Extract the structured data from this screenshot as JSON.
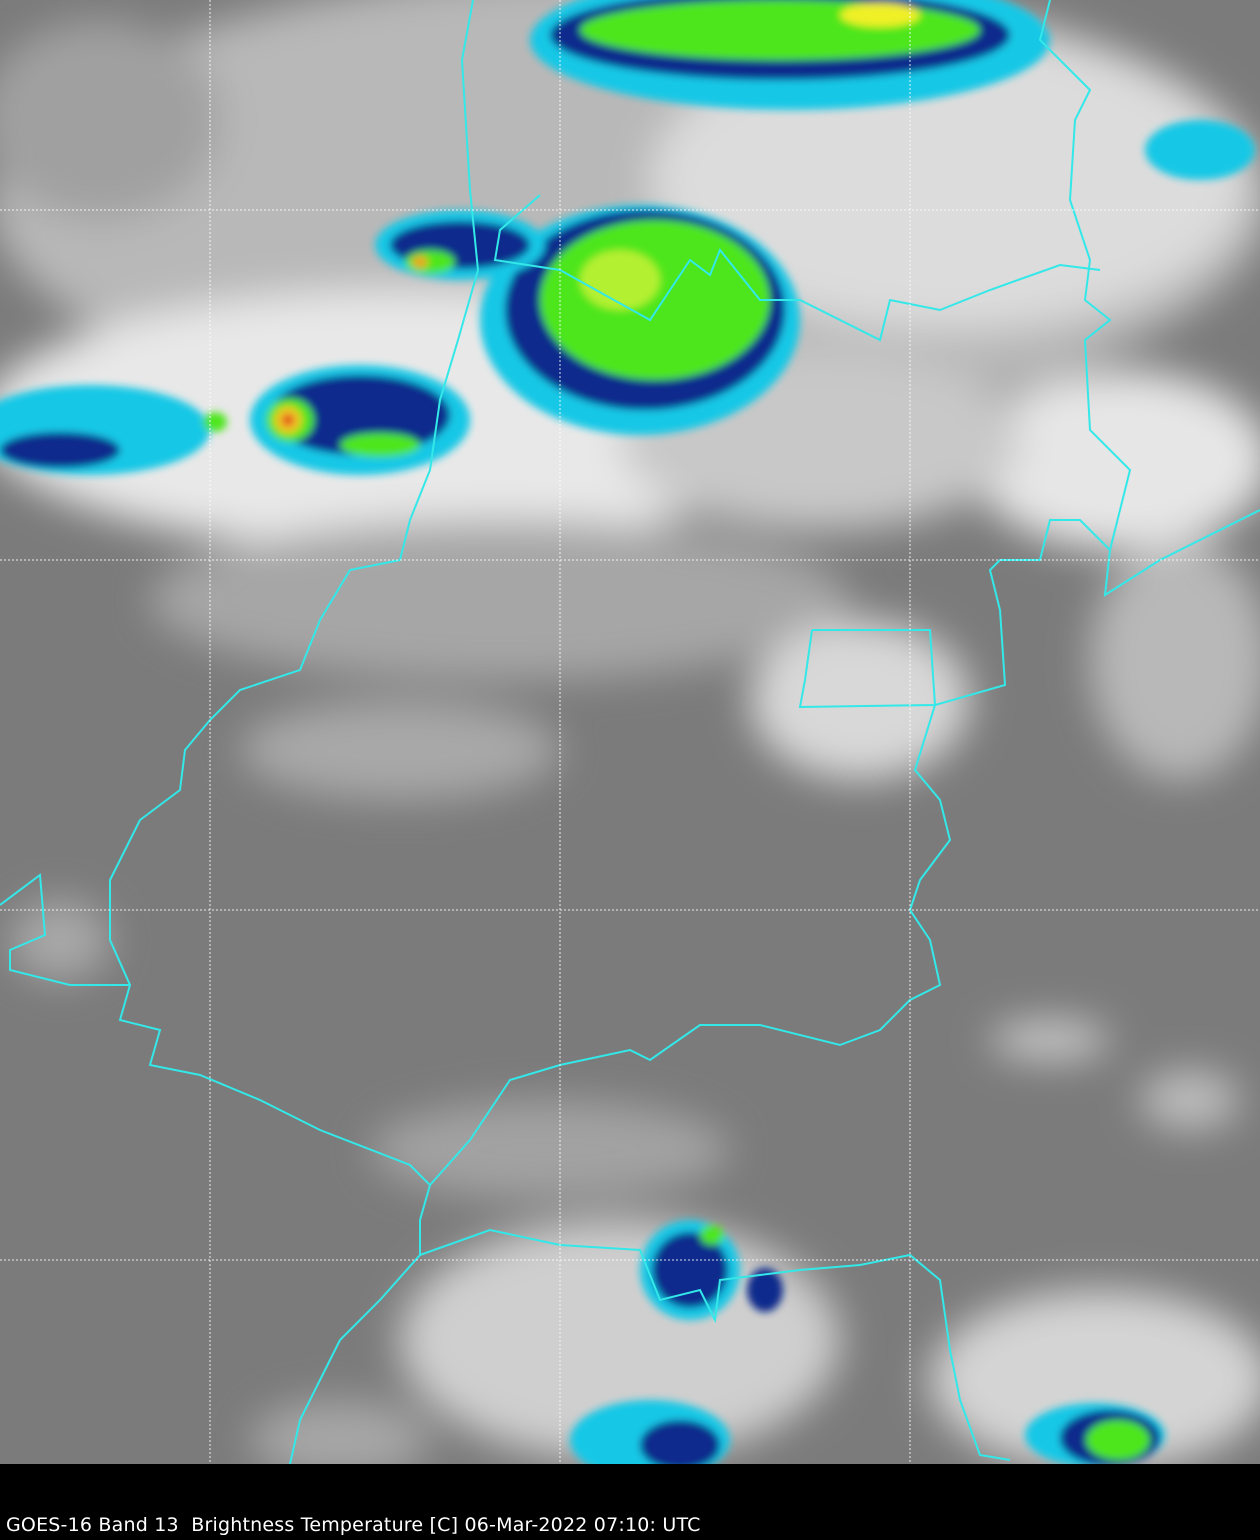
{
  "caption": "GOES-16 Band 13  Brightness Temperature [C] 06-Mar-2022 07:10: UTC",
  "colors": {
    "background_land": "#7a7a7a",
    "cloud_high": "#ffffff",
    "border": "#33e8e8",
    "gridline": "#ffffff",
    "cold_cyan": "#19c8e6",
    "cold_blue": "#0a2a8c",
    "coldest_green": "#4ee61e",
    "coldest_yellow": "#f0f028",
    "coldest_red": "#e03c1e"
  },
  "layers": [
    "infrared-grayscale",
    "enhanced-color-cloud-tops",
    "political-borders",
    "lat-lon-grid"
  ]
}
